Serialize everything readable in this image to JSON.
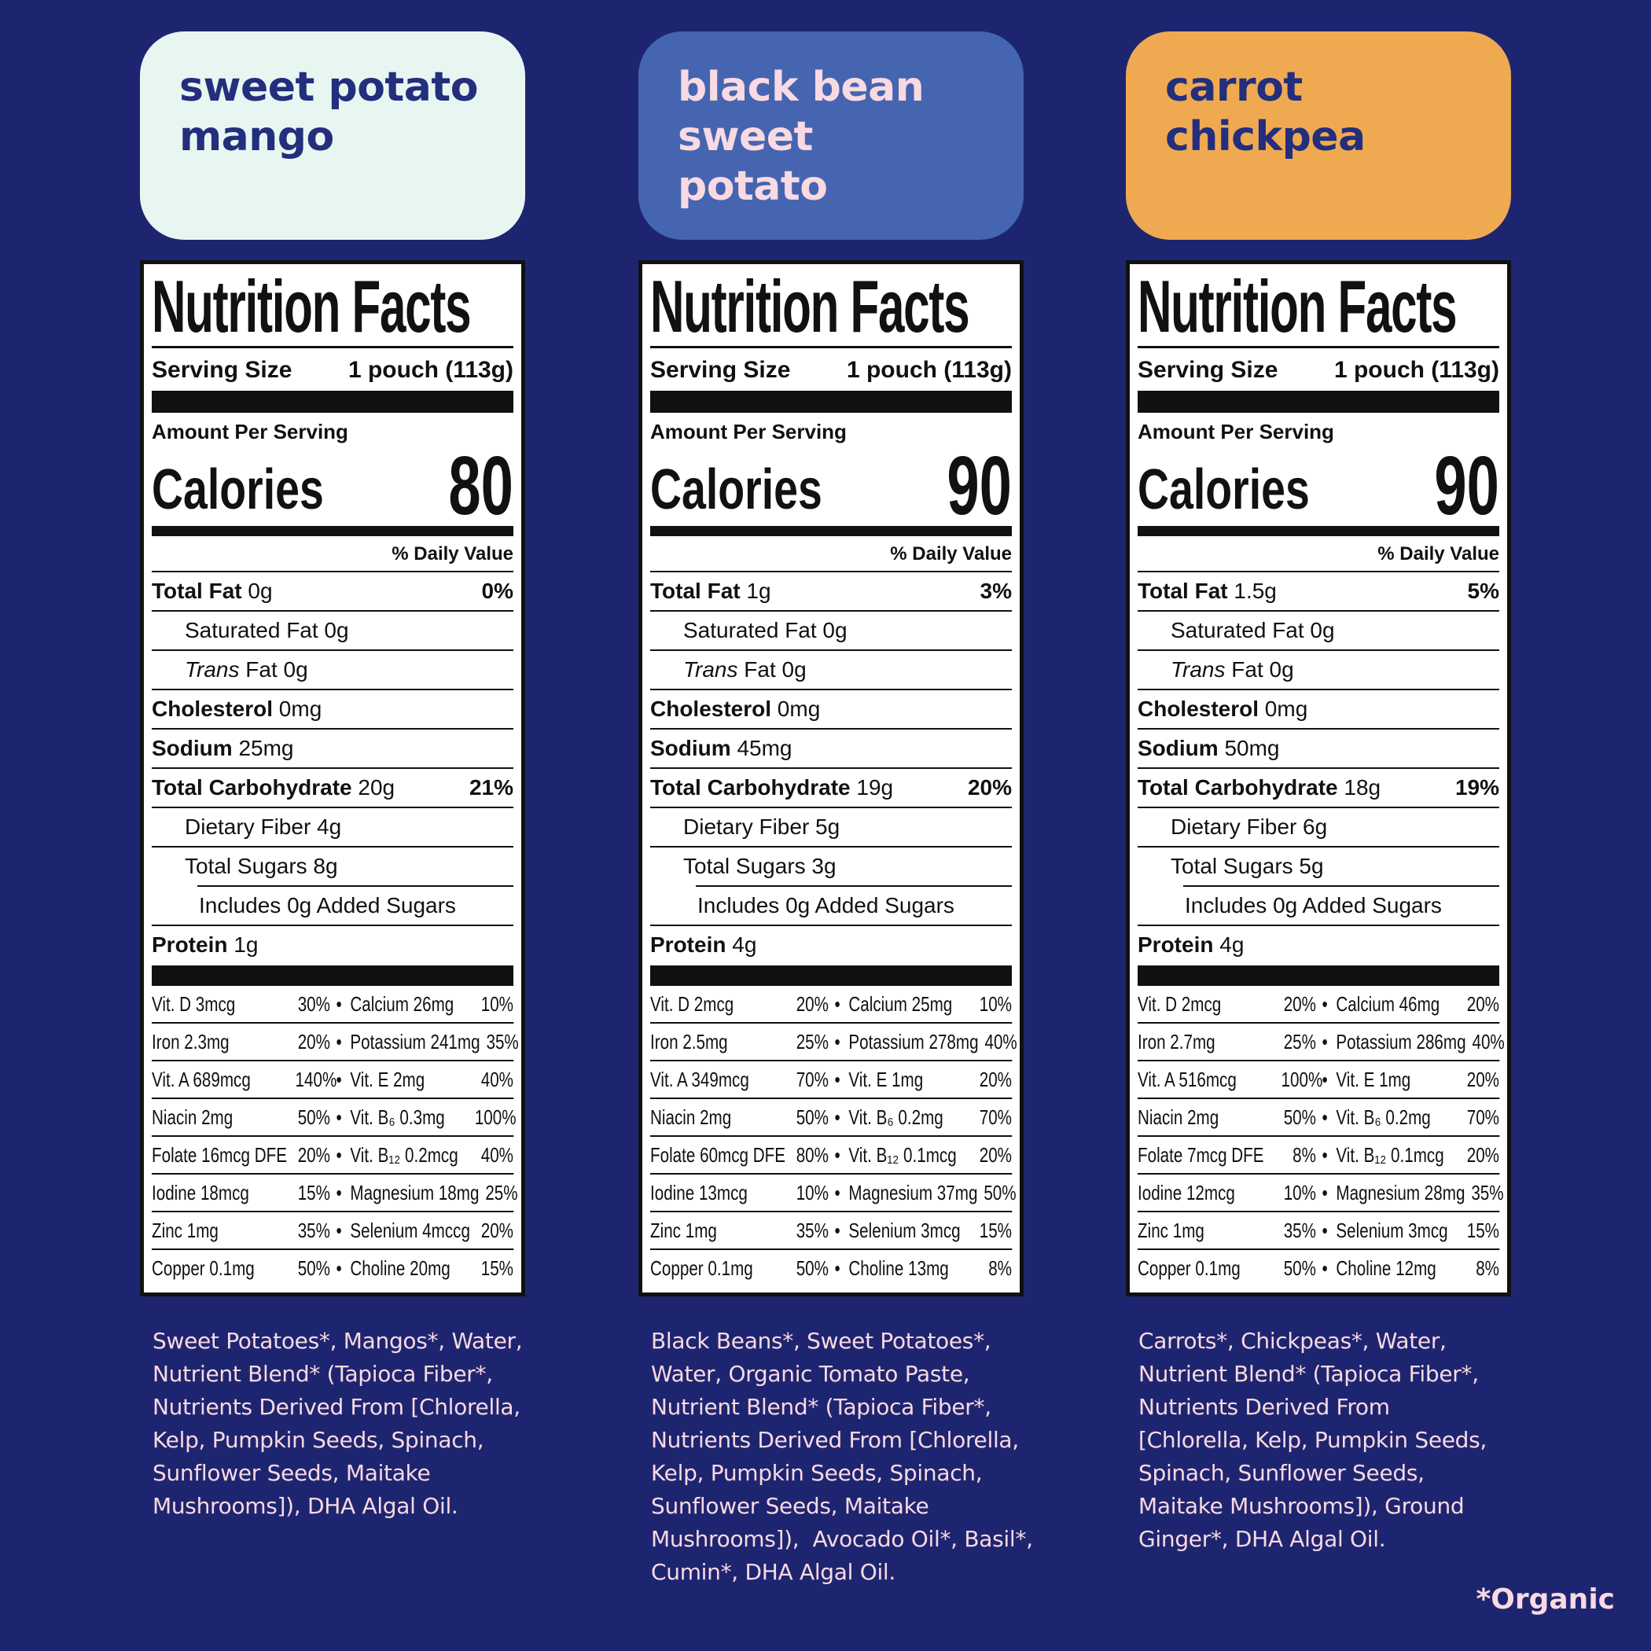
{
  "theme": {
    "page_bg": "#1e2570",
    "pink": "#f9d9e2",
    "navy_text": "#232e7d",
    "label_ink": "#111111"
  },
  "organic_note": "*Organic",
  "columns": [
    {
      "badge": {
        "label": "sweet potato\nmango",
        "bg": "#e8f6f1",
        "fg": "#232e7d"
      },
      "label": {
        "title": "Nutrition Facts",
        "serving_size_label": "Serving Size",
        "serving_size_value": "1 pouch (113g)",
        "amount_per_serving": "Amount Per Serving",
        "calories_label": "Calories",
        "calories_value": "80",
        "daily_value_header": "% Daily Value",
        "nutrient_rows": [
          {
            "bold": "Total Fat",
            "rest": " 0g",
            "pct": "0%",
            "indent": 0
          },
          {
            "rest": "Saturated Fat 0g",
            "indent": 1
          },
          {
            "italic": "Trans",
            "rest": " Fat 0g",
            "indent": 1
          },
          {
            "bold": "Cholesterol",
            "rest": " 0mg",
            "indent": 0
          },
          {
            "bold": "Sodium",
            "rest": " 25mg",
            "indent": 0
          },
          {
            "bold": "Total Carbohydrate",
            "rest": " 20g",
            "pct": "21%",
            "indent": 0
          },
          {
            "rest": "Dietary Fiber 4g",
            "indent": 1
          },
          {
            "rest": "Total Sugars 8g",
            "indent": 1
          },
          {
            "rest": "Includes 0g Added Sugars",
            "indent": 2,
            "inset_rule": true
          },
          {
            "bold": "Protein",
            "rest": " 1g",
            "indent": 0
          }
        ],
        "micro_rows": [
          {
            "l": "Vit. D 3mcg",
            "lp": "30%",
            "r": "Calcium 26mg",
            "rp": "10%"
          },
          {
            "l": "Iron 2.3mg",
            "lp": "20%",
            "r": "Potassium 241mg",
            "rp": "35%"
          },
          {
            "l": "Vit. A 689mcg",
            "lp": "140%",
            "r": "Vit. E 2mg",
            "rp": "40%"
          },
          {
            "l": "Niacin 2mg",
            "lp": "50%",
            "r": "Vit. B₆ 0.3mg",
            "rp": "100%"
          },
          {
            "l": "Folate 16mcg DFE",
            "lp": "20%",
            "r": "Vit. B₁₂ 0.2mcg",
            "rp": "40%"
          },
          {
            "l": "Iodine 18mcg",
            "lp": "15%",
            "r": "Magnesium 18mg",
            "rp": "25%"
          },
          {
            "l": "Zinc 1mg",
            "lp": "35%",
            "r": "Selenium 4mccg",
            "rp": "20%"
          },
          {
            "l": "Copper 0.1mg",
            "lp": "50%",
            "r": "Choline 20mg",
            "rp": "15%"
          }
        ]
      },
      "ingredients": "Sweet Potatoes*, Mangos*, Water,\nNutrient Blend* (Tapioca Fiber*,\nNutrients Derived From [Chlorella,\nKelp, Pumpkin Seeds, Spinach,\nSunflower Seeds, Maitake\nMushrooms]), DHA Algal Oil."
    },
    {
      "badge": {
        "label": "black bean\nsweet\npotato",
        "bg": "#4565b1",
        "fg": "#f9d9e2"
      },
      "label": {
        "title": "Nutrition Facts",
        "serving_size_label": "Serving Size",
        "serving_size_value": "1 pouch (113g)",
        "amount_per_serving": "Amount Per Serving",
        "calories_label": "Calories",
        "calories_value": "90",
        "daily_value_header": "% Daily Value",
        "nutrient_rows": [
          {
            "bold": "Total Fat",
            "rest": " 1g",
            "pct": "3%",
            "indent": 0
          },
          {
            "rest": "Saturated Fat 0g",
            "indent": 1
          },
          {
            "italic": "Trans",
            "rest": " Fat 0g",
            "indent": 1
          },
          {
            "bold": "Cholesterol",
            "rest": " 0mg",
            "indent": 0
          },
          {
            "bold": "Sodium",
            "rest": " 45mg",
            "indent": 0
          },
          {
            "bold": "Total Carbohydrate",
            "rest": " 19g",
            "pct": "20%",
            "indent": 0
          },
          {
            "rest": "Dietary Fiber 5g",
            "indent": 1
          },
          {
            "rest": "Total Sugars 3g",
            "indent": 1
          },
          {
            "rest": "Includes 0g Added Sugars",
            "indent": 2,
            "inset_rule": true
          },
          {
            "bold": "Protein",
            "rest": " 4g",
            "indent": 0
          }
        ],
        "micro_rows": [
          {
            "l": "Vit. D 2mcg",
            "lp": "20%",
            "r": "Calcium 25mg",
            "rp": "10%"
          },
          {
            "l": "Iron 2.5mg",
            "lp": "25%",
            "r": "Potassium 278mg",
            "rp": "40%"
          },
          {
            "l": "Vit. A 349mcg",
            "lp": "70%",
            "r": "Vit. E 1mg",
            "rp": "20%"
          },
          {
            "l": "Niacin 2mg",
            "lp": "50%",
            "r": "Vit. B₆ 0.2mg",
            "rp": "70%"
          },
          {
            "l": "Folate 60mcg DFE",
            "lp": "80%",
            "r": "Vit. B₁₂ 0.1mcg",
            "rp": "20%"
          },
          {
            "l": "Iodine 13mcg",
            "lp": "10%",
            "r": "Magnesium 37mg",
            "rp": "50%"
          },
          {
            "l": "Zinc 1mg",
            "lp": "35%",
            "r": "Selenium 3mcg",
            "rp": "15%"
          },
          {
            "l": "Copper 0.1mg",
            "lp": "50%",
            "r": "Choline 13mg",
            "rp": "8%"
          }
        ]
      },
      "ingredients": "Black Beans*, Sweet Potatoes*,\nWater, Organic Tomato Paste,\nNutrient Blend* (Tapioca Fiber*,\nNutrients Derived From [Chlorella,\nKelp, Pumpkin Seeds, Spinach,\nSunflower Seeds, Maitake\nMushrooms]),  Avocado Oil*, Basil*,\nCumin*, DHA Algal Oil."
    },
    {
      "badge": {
        "label": "carrot\nchickpea",
        "bg": "#efaa51",
        "fg": "#232e7d"
      },
      "label": {
        "title": "Nutrition Facts",
        "serving_size_label": "Serving Size",
        "serving_size_value": "1 pouch (113g)",
        "amount_per_serving": "Amount Per Serving",
        "calories_label": "Calories",
        "calories_value": "90",
        "daily_value_header": "% Daily Value",
        "nutrient_rows": [
          {
            "bold": "Total Fat",
            "rest": " 1.5g",
            "pct": "5%",
            "indent": 0
          },
          {
            "rest": "Saturated Fat 0g",
            "indent": 1
          },
          {
            "italic": "Trans",
            "rest": " Fat 0g",
            "indent": 1
          },
          {
            "bold": "Cholesterol",
            "rest": " 0mg",
            "indent": 0
          },
          {
            "bold": "Sodium",
            "rest": " 50mg",
            "indent": 0
          },
          {
            "bold": "Total Carbohydrate",
            "rest": " 18g",
            "pct": "19%",
            "indent": 0
          },
          {
            "rest": "Dietary Fiber 6g",
            "indent": 1
          },
          {
            "rest": "Total Sugars 5g",
            "indent": 1
          },
          {
            "rest": "Includes 0g Added Sugars",
            "indent": 2,
            "inset_rule": true
          },
          {
            "bold": "Protein",
            "rest": " 4g",
            "indent": 0
          }
        ],
        "micro_rows": [
          {
            "l": "Vit. D 2mcg",
            "lp": "20%",
            "r": "Calcium 46mg",
            "rp": "20%"
          },
          {
            "l": "Iron 2.7mg",
            "lp": "25%",
            "r": "Potassium 286mg",
            "rp": "40%"
          },
          {
            "l": "Vit. A 516mcg",
            "lp": "100%",
            "r": "Vit. E 1mg",
            "rp": "20%"
          },
          {
            "l": "Niacin 2mg",
            "lp": "50%",
            "r": "Vit. B₆ 0.2mg",
            "rp": "70%"
          },
          {
            "l": "Folate 7mcg DFE",
            "lp": "8%",
            "r": "Vit. B₁₂ 0.1mcg",
            "rp": "20%"
          },
          {
            "l": "Iodine 12mcg",
            "lp": "10%",
            "r": "Magnesium 28mg",
            "rp": "35%"
          },
          {
            "l": "Zinc 1mg",
            "lp": "35%",
            "r": "Selenium 3mcg",
            "rp": "15%"
          },
          {
            "l": "Copper 0.1mg",
            "lp": "50%",
            "r": "Choline 12mg",
            "rp": "8%"
          }
        ]
      },
      "ingredients": "Carrots*, Chickpeas*, Water,\nNutrient Blend* (Tapioca Fiber*,\nNutrients Derived From\n[Chlorella, Kelp, Pumpkin Seeds,\nSpinach, Sunflower Seeds,\nMaitake Mushrooms]), Ground\nGinger*, DHA Algal Oil."
    }
  ]
}
